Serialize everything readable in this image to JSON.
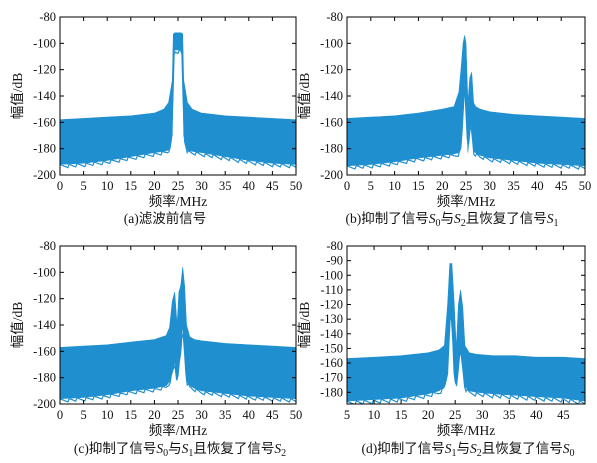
{
  "colors": {
    "series": "#1f8fd0",
    "axis": "#000000",
    "text": "#111111"
  },
  "chart_data": [
    {
      "type": "area",
      "caption": "(a)滤波前信号",
      "xlabel": "频率/MHz",
      "ylabel": "幅值/dB",
      "xlim": [
        0,
        50
      ],
      "ylim": [
        -200,
        -80
      ],
      "xticks": [
        0,
        5,
        10,
        15,
        20,
        25,
        30,
        35,
        40,
        45,
        50
      ],
      "yticks": [
        -80,
        -100,
        -120,
        -140,
        -160,
        -180,
        -200
      ],
      "x": [
        0,
        5,
        10,
        15,
        20,
        22,
        23,
        23.8,
        24,
        24.3,
        25,
        25.7,
        26,
        26.2,
        27,
        28,
        30,
        35,
        40,
        45,
        50
      ],
      "y_upper": [
        -158,
        -157,
        -156,
        -155,
        -153,
        -150,
        -145,
        -128,
        -93,
        -92,
        -92,
        -92,
        -93,
        -128,
        -145,
        -150,
        -153,
        -155,
        -156,
        -157,
        -158
      ],
      "y_lower": [
        -192,
        -191,
        -189,
        -186,
        -183,
        -182,
        -181,
        -170,
        -110,
        -105,
        -105,
        -105,
        -110,
        -170,
        -181,
        -182,
        -183,
        -186,
        -189,
        -191,
        -192
      ]
    },
    {
      "type": "area",
      "caption": "(b)抑制了信号S0与S2且恢复了信号S1",
      "caption_parts": [
        [
          "t",
          "(b)抑制了信号"
        ],
        [
          "i",
          "S"
        ],
        [
          "s",
          "0"
        ],
        [
          "t",
          "与"
        ],
        [
          "i",
          "S"
        ],
        [
          "s",
          "2"
        ],
        [
          "t",
          "且恢复了信号"
        ],
        [
          "i",
          "S"
        ],
        [
          "s",
          "1"
        ]
      ],
      "xlabel": "频率/MHz",
      "ylabel": "幅值/dB",
      "xlim": [
        0,
        50
      ],
      "ylim": [
        -200,
        -80
      ],
      "xticks": [
        0,
        5,
        10,
        15,
        20,
        25,
        30,
        35,
        40,
        45,
        50
      ],
      "yticks": [
        -80,
        -100,
        -120,
        -140,
        -160,
        -180,
        -200
      ],
      "x": [
        0,
        5,
        10,
        15,
        20,
        22.5,
        23.5,
        24,
        24.4,
        24.7,
        25,
        25.4,
        25.8,
        26.2,
        26.6,
        27,
        28,
        30,
        35,
        40,
        45,
        50
      ],
      "y_upper": [
        -157,
        -156,
        -155,
        -153,
        -150,
        -148,
        -137,
        -118,
        -100,
        -94,
        -100,
        -145,
        -126,
        -122,
        -145,
        -148,
        -150,
        -152,
        -154,
        -155,
        -156,
        -157
      ],
      "y_lower": [
        -193,
        -192,
        -190,
        -187,
        -185,
        -184,
        -183,
        -178,
        -150,
        -128,
        -150,
        -183,
        -165,
        -162,
        -182,
        -183,
        -185,
        -187,
        -189,
        -191,
        -192,
        -193
      ]
    },
    {
      "type": "area",
      "caption": "(c)抑制了信号S0与S1且恢复了信号S2",
      "caption_parts": [
        [
          "t",
          "(c)抑制了信号"
        ],
        [
          "i",
          "S"
        ],
        [
          "s",
          "0"
        ],
        [
          "t",
          "与"
        ],
        [
          "i",
          "S"
        ],
        [
          "s",
          "1"
        ],
        [
          "t",
          "且恢复了信号"
        ],
        [
          "i",
          "S"
        ],
        [
          "s",
          "2"
        ]
      ],
      "xlabel": "频率/MHz",
      "ylabel": "幅值/dB",
      "xlim": [
        0,
        50
      ],
      "ylim": [
        -200,
        -80
      ],
      "xticks": [
        0,
        5,
        10,
        15,
        20,
        25,
        30,
        35,
        40,
        45,
        50
      ],
      "yticks": [
        -80,
        -100,
        -120,
        -140,
        -160,
        -180,
        -200
      ],
      "x": [
        0,
        5,
        10,
        15,
        20,
        22.5,
        23.2,
        23.8,
        24.3,
        24.8,
        25.2,
        25.6,
        26,
        26.4,
        26.8,
        27.5,
        28.5,
        30,
        35,
        40,
        45,
        50
      ],
      "y_upper": [
        -157,
        -156,
        -155,
        -153,
        -151,
        -148,
        -142,
        -122,
        -115,
        -140,
        -115,
        -110,
        -96,
        -110,
        -140,
        -149,
        -151,
        -152,
        -154,
        -155,
        -156,
        -157
      ],
      "y_lower": [
        -196,
        -195,
        -193,
        -190,
        -188,
        -186,
        -183,
        -175,
        -168,
        -182,
        -170,
        -160,
        -140,
        -160,
        -182,
        -186,
        -188,
        -190,
        -192,
        -194,
        -195,
        -196
      ]
    },
    {
      "type": "area",
      "caption": "(d)抑制了信号S1与S2且恢复了信号S0",
      "caption_parts": [
        [
          "t",
          "(d)抑制了信号"
        ],
        [
          "i",
          "S"
        ],
        [
          "s",
          "1"
        ],
        [
          "t",
          "与"
        ],
        [
          "i",
          "S"
        ],
        [
          "s",
          "2"
        ],
        [
          "t",
          "且恢复了信号"
        ],
        [
          "i",
          "S"
        ],
        [
          "s",
          "0"
        ]
      ],
      "xlabel": "频率/MHz",
      "ylabel": "幅值/dB",
      "xlim": [
        5,
        49
      ],
      "ylim": [
        -188,
        -80
      ],
      "xticks": [
        5,
        10,
        15,
        20,
        25,
        30,
        35,
        40,
        45
      ],
      "yticks": [
        -80,
        -90,
        -100,
        -110,
        -120,
        -130,
        -140,
        -150,
        -160,
        -170,
        -180
      ],
      "x": [
        5,
        10,
        15,
        20,
        22,
        23,
        23.6,
        24,
        24.4,
        24.8,
        25.2,
        25.6,
        26,
        26.4,
        26.8,
        27.6,
        29,
        32,
        36,
        40,
        45,
        49
      ],
      "y_upper": [
        -157,
        -156,
        -155,
        -153,
        -151,
        -148,
        -120,
        -92,
        -92,
        -118,
        -150,
        -120,
        -110,
        -122,
        -148,
        -153,
        -154,
        -155,
        -155,
        -156,
        -156,
        -157
      ],
      "y_lower": [
        -186,
        -185,
        -184,
        -181,
        -179,
        -176,
        -165,
        -130,
        -130,
        -165,
        -176,
        -160,
        -150,
        -162,
        -176,
        -179,
        -180,
        -181,
        -182,
        -183,
        -184,
        -186
      ]
    }
  ]
}
